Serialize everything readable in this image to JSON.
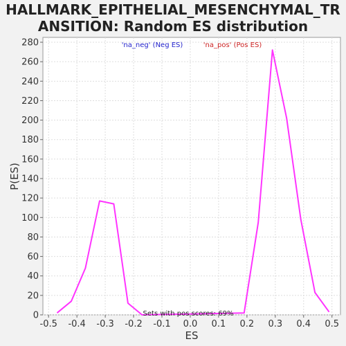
{
  "title_line1": "HALLMARK_EPITHELIAL_MESENCHYMAL_TR",
  "title_line2": "ANSITION: Random ES distribution",
  "chart_data": {
    "type": "line",
    "xlabel": "ES",
    "ylabel": "P(ES)",
    "xlim": [
      -0.52,
      0.53
    ],
    "ylim": [
      0,
      285
    ],
    "x_ticks": [
      -0.5,
      -0.4,
      -0.3,
      -0.2,
      -0.1,
      0.0,
      0.1,
      0.2,
      0.3,
      0.4,
      0.5
    ],
    "x_tick_labels": [
      "-0.5",
      "-0.4",
      "-0.3",
      "-0.2",
      "-0.1",
      "0.0",
      "0.1",
      "0.2",
      "0.3",
      "0.4",
      "0.5"
    ],
    "y_ticks": [
      0,
      20,
      40,
      60,
      80,
      100,
      120,
      140,
      160,
      180,
      200,
      220,
      240,
      260,
      280
    ],
    "grid": true,
    "legend": [
      {
        "label": "'na_neg' (Neg ES)",
        "color": "#2222cc"
      },
      {
        "label": "'na_pos' (Pos ES)",
        "color": "#cc2222"
      }
    ],
    "annotation": "Sets with pos scores: 69%",
    "series": [
      {
        "color": "#ff33ff",
        "x": [
          -0.47,
          -0.42,
          -0.37,
          -0.32,
          -0.27,
          -0.22,
          -0.17,
          0.19,
          0.24,
          0.29,
          0.34,
          0.39,
          0.44,
          0.49
        ],
        "y": [
          2,
          14,
          48,
          117,
          114,
          12,
          0,
          2,
          95,
          272,
          202,
          98,
          23,
          3
        ]
      }
    ]
  }
}
